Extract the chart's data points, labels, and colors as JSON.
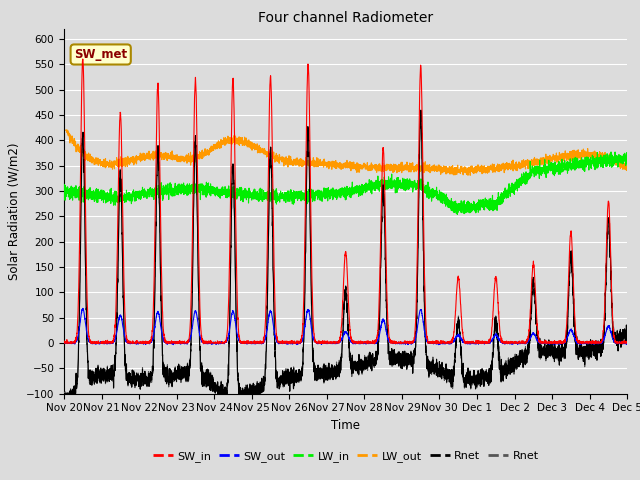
{
  "title": "Four channel Radiometer",
  "xlabel": "Time",
  "ylabel": "Solar Radiation (W/m2)",
  "ylim": [
    -100,
    620
  ],
  "yticks": [
    -100,
    -50,
    0,
    50,
    100,
    150,
    200,
    250,
    300,
    350,
    400,
    450,
    500,
    550,
    600
  ],
  "background_color": "#dcdcdc",
  "plot_bg_color": "#dcdcdc",
  "grid_color": "#ffffff",
  "annotation_text": "SW_met",
  "annotation_bg": "#ffffcc",
  "annotation_border": "#aa8800",
  "series": {
    "SW_in": {
      "color": "#ff0000",
      "lw": 0.8
    },
    "SW_out": {
      "color": "#0000ff",
      "lw": 0.8
    },
    "LW_in": {
      "color": "#00ee00",
      "lw": 0.8
    },
    "LW_out": {
      "color": "#ff9900",
      "lw": 0.8
    },
    "Rnet1": {
      "color": "#000000",
      "lw": 0.8
    },
    "Rnet2": {
      "color": "#555555",
      "lw": 0.8
    }
  },
  "n_days": 15,
  "pts_per_day": 288,
  "x_tick_labels": [
    "Nov 20",
    "Nov 21",
    "Nov 22",
    "Nov 23",
    "Nov 24",
    "Nov 25",
    "Nov 26",
    "Nov 27",
    "Nov 28",
    "Nov 29",
    "Nov 30",
    "Dec 1",
    "Dec 2",
    "Dec 3",
    "Dec 4",
    "Dec 5"
  ],
  "day_peaks_sw": [
    560,
    455,
    510,
    520,
    520,
    525,
    550,
    180,
    385,
    545,
    130,
    130,
    155,
    220,
    280
  ],
  "legend_labels": [
    "SW_in",
    "SW_out",
    "LW_in",
    "LW_out",
    "Rnet",
    "Rnet"
  ],
  "legend_colors": [
    "#ff0000",
    "#0000ff",
    "#00ee00",
    "#ff9900",
    "#000000",
    "#555555"
  ]
}
